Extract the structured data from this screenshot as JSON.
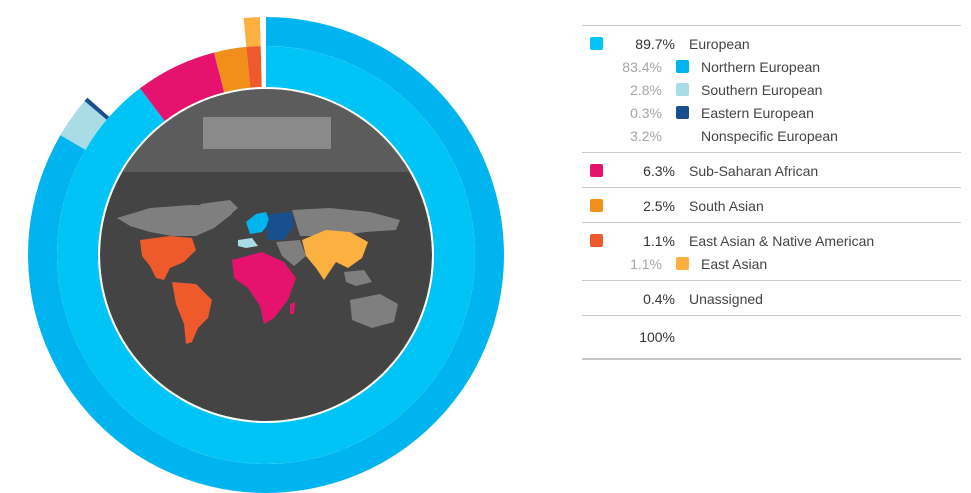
{
  "colors": {
    "european": "#00c4f5",
    "northern_european": "#00b4ef",
    "southern_european": "#a9dce5",
    "eastern_european": "#17508c",
    "sub_saharan_african": "#e6136e",
    "south_asian": "#f0901a",
    "east_asian_native_american": "#ee5a2b",
    "east_asian": "#fbb040",
    "map_background": "#444444",
    "map_land": "#7f7f7f"
  },
  "chart_data": {
    "type": "pie",
    "inner_ring": [
      {
        "name": "European",
        "value": 89.7,
        "color": "#00c4f5"
      },
      {
        "name": "Sub-Saharan African",
        "value": 6.3,
        "color": "#e6136e"
      },
      {
        "name": "South Asian",
        "value": 2.5,
        "color": "#f0901a"
      },
      {
        "name": "East Asian & Native American",
        "value": 1.1,
        "color": "#ee5a2b"
      },
      {
        "name": "Unassigned",
        "value": 0.4,
        "color": "#ffffff"
      }
    ],
    "outer_ring": [
      {
        "name": "Northern European",
        "value": 83.4,
        "color": "#00b4ef"
      },
      {
        "name": "Southern European",
        "value": 2.8,
        "color": "#a9dce5"
      },
      {
        "name": "Eastern European",
        "value": 0.3,
        "color": "#17508c"
      },
      {
        "name": "Nonspecific European",
        "value": 3.2,
        "color": "#ffffff"
      },
      {
        "name": "Sub-Saharan African",
        "value": 6.3,
        "color": "#ffffff"
      },
      {
        "name": "South Asian",
        "value": 2.5,
        "color": "#ffffff"
      },
      {
        "name": "East Asian",
        "value": 1.1,
        "color": "#fbb040"
      },
      {
        "name": "Unassigned",
        "value": 0.4,
        "color": "#ffffff"
      }
    ]
  },
  "legend": {
    "groups": [
      {
        "pct": "89.7%",
        "label": "European",
        "color": "#00c4f5",
        "subs": [
          {
            "pct": "83.4%",
            "label": "Northern European",
            "color": "#00b4ef"
          },
          {
            "pct": "2.8%",
            "label": "Southern European",
            "color": "#a9dce5"
          },
          {
            "pct": "0.3%",
            "label": "Eastern European",
            "color": "#17508c"
          },
          {
            "pct": "3.2%",
            "label": "Nonspecific European",
            "color": ""
          }
        ]
      },
      {
        "pct": "6.3%",
        "label": "Sub-Saharan African",
        "color": "#e6136e",
        "subs": []
      },
      {
        "pct": "2.5%",
        "label": "South Asian",
        "color": "#f0901a",
        "subs": []
      },
      {
        "pct": "1.1%",
        "label": "East Asian & Native American",
        "color": "#ee5a2b",
        "subs": [
          {
            "pct": "1.1%",
            "label": "East Asian",
            "color": "#fbb040"
          }
        ]
      },
      {
        "pct": "0.4%",
        "label": "Unassigned",
        "color": "",
        "subs": []
      }
    ],
    "total": "100%"
  }
}
